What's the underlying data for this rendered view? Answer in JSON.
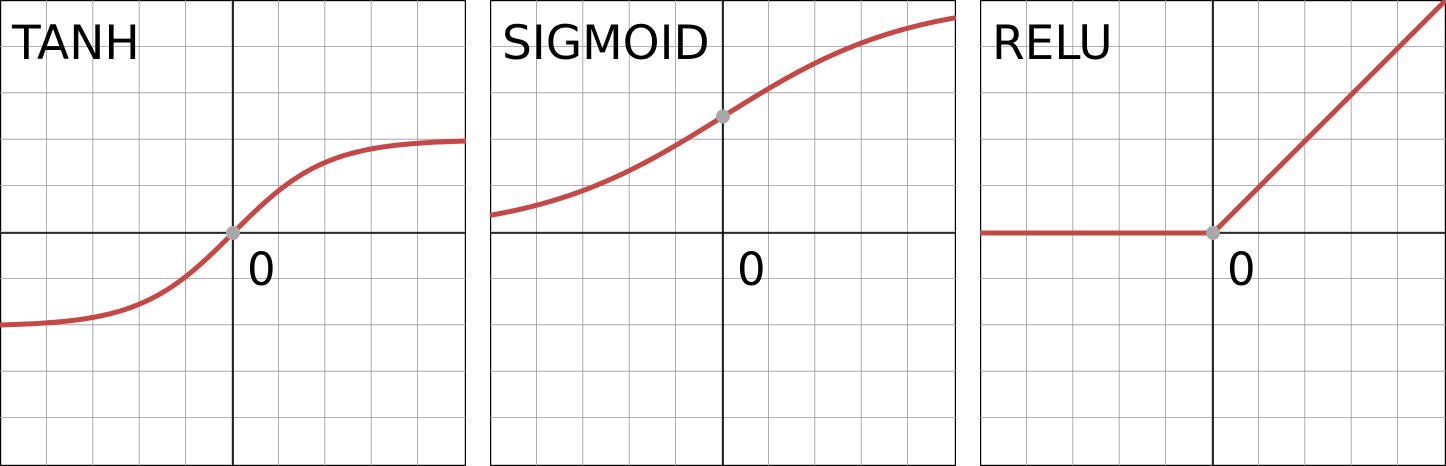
{
  "chart_data": [
    {
      "type": "line",
      "title": "TANH",
      "function": "tanh",
      "origin_label": "0",
      "x": [
        -2.5,
        -2.0,
        -1.5,
        -1.0,
        -0.5,
        0.0,
        0.5,
        1.0,
        1.5,
        2.0,
        2.5
      ],
      "y": [
        -0.987,
        -0.964,
        -0.905,
        -0.762,
        -0.462,
        0.0,
        0.462,
        0.762,
        0.905,
        0.964,
        0.987
      ],
      "xlim": [
        -2.5,
        2.5
      ],
      "ylim": [
        -2.5,
        2.5
      ],
      "grid": true,
      "marker_at_origin": true
    },
    {
      "type": "line",
      "title": "SIGMOID",
      "function": "sigmoid",
      "origin_label": "0",
      "x": [
        -2.5,
        -2.0,
        -1.5,
        -1.0,
        -0.5,
        0.0,
        0.5,
        1.0,
        1.5,
        2.0,
        2.5
      ],
      "y": [
        0.076,
        0.119,
        0.182,
        0.269,
        0.378,
        0.5,
        0.622,
        0.731,
        0.818,
        0.881,
        0.924
      ],
      "xlim": [
        -2.5,
        2.5
      ],
      "ylim": [
        -1.0,
        1.0
      ],
      "grid": true,
      "marker_at_origin": true
    },
    {
      "type": "line",
      "title": "RELU",
      "function": "relu",
      "origin_label": "0",
      "x": [
        -2.5,
        -2.0,
        -1.5,
        -1.0,
        -0.5,
        0.0,
        0.5,
        1.0,
        1.5,
        2.0,
        2.5
      ],
      "y": [
        0.0,
        0.0,
        0.0,
        0.0,
        0.0,
        0.0,
        0.5,
        1.0,
        1.5,
        2.0,
        2.5
      ],
      "xlim": [
        -2.5,
        2.5
      ],
      "ylim": [
        -2.5,
        2.5
      ],
      "grid": true,
      "marker_at_origin": true
    }
  ],
  "colors": {
    "curve": "#c44845",
    "grid": "#9a9a9a",
    "axis": "#000000",
    "marker": "#a8a8a8"
  }
}
